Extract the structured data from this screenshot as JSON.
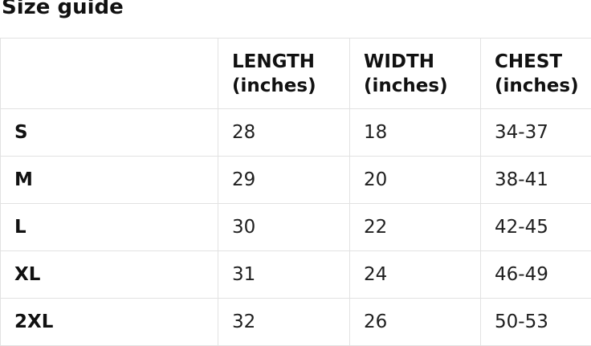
{
  "page_title": "Size guide",
  "colors": {
    "background": "#ffffff",
    "text": "#1a1a1a",
    "heading_text": "#111111",
    "table_border": "#e2e2e2"
  },
  "table": {
    "columns": [
      {
        "label": ""
      },
      {
        "label": "LENGTH (inches)"
      },
      {
        "label": "WIDTH (inches)"
      },
      {
        "label": "CHEST (inches)"
      }
    ],
    "rows": [
      {
        "size": "S",
        "length": "28",
        "width": "18",
        "chest": "34-37"
      },
      {
        "size": "M",
        "length": "29",
        "width": "20",
        "chest": "38-41"
      },
      {
        "size": "L",
        "length": "30",
        "width": "22",
        "chest": "42-45"
      },
      {
        "size": "XL",
        "length": "31",
        "width": "24",
        "chest": "46-49"
      },
      {
        "size": "2XL",
        "length": "32",
        "width": "26",
        "chest": "50-53"
      }
    ]
  },
  "chart_data": {
    "type": "table",
    "title": "Size guide",
    "categories": [
      "S",
      "M",
      "L",
      "XL",
      "2XL"
    ],
    "series": [
      {
        "name": "LENGTH (inches)",
        "values": [
          28,
          29,
          30,
          31,
          32
        ]
      },
      {
        "name": "WIDTH (inches)",
        "values": [
          18,
          20,
          22,
          24,
          26
        ]
      },
      {
        "name": "CHEST (inches)",
        "values": [
          "34-37",
          "38-41",
          "42-45",
          "46-49",
          "50-53"
        ]
      }
    ]
  }
}
